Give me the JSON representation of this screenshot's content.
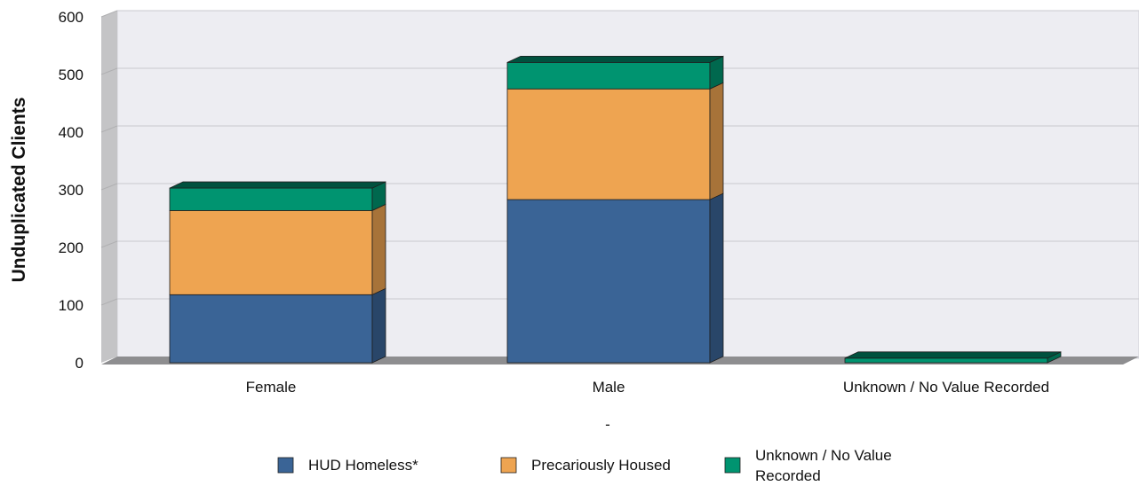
{
  "chart_data": {
    "type": "bar",
    "stacked": true,
    "style": "3d",
    "ylabel": "Unduplicated Clients",
    "xlabel": "-",
    "ylim": [
      0,
      600
    ],
    "yticks": [
      0,
      100,
      200,
      300,
      400,
      500,
      600
    ],
    "categories": [
      "Female",
      "Male",
      "Unknown / No Value Recorded"
    ],
    "series": [
      {
        "name": "HUD Homeless*",
        "values": [
          118,
          283,
          0
        ],
        "color": "#3a6496"
      },
      {
        "name": "Precariously Housed",
        "values": [
          146,
          192,
          0
        ],
        "color": "#eea451"
      },
      {
        "name": "Unknown / No Value Recorded",
        "values": [
          39,
          46,
          8
        ],
        "color": "#009470"
      }
    ],
    "legend": {
      "position": "bottom",
      "lines": [
        [
          "HUD Homeless*"
        ],
        [
          "Precariously Housed"
        ],
        [
          "Unknown / No Value",
          "Recorded"
        ]
      ]
    },
    "grid": true
  }
}
